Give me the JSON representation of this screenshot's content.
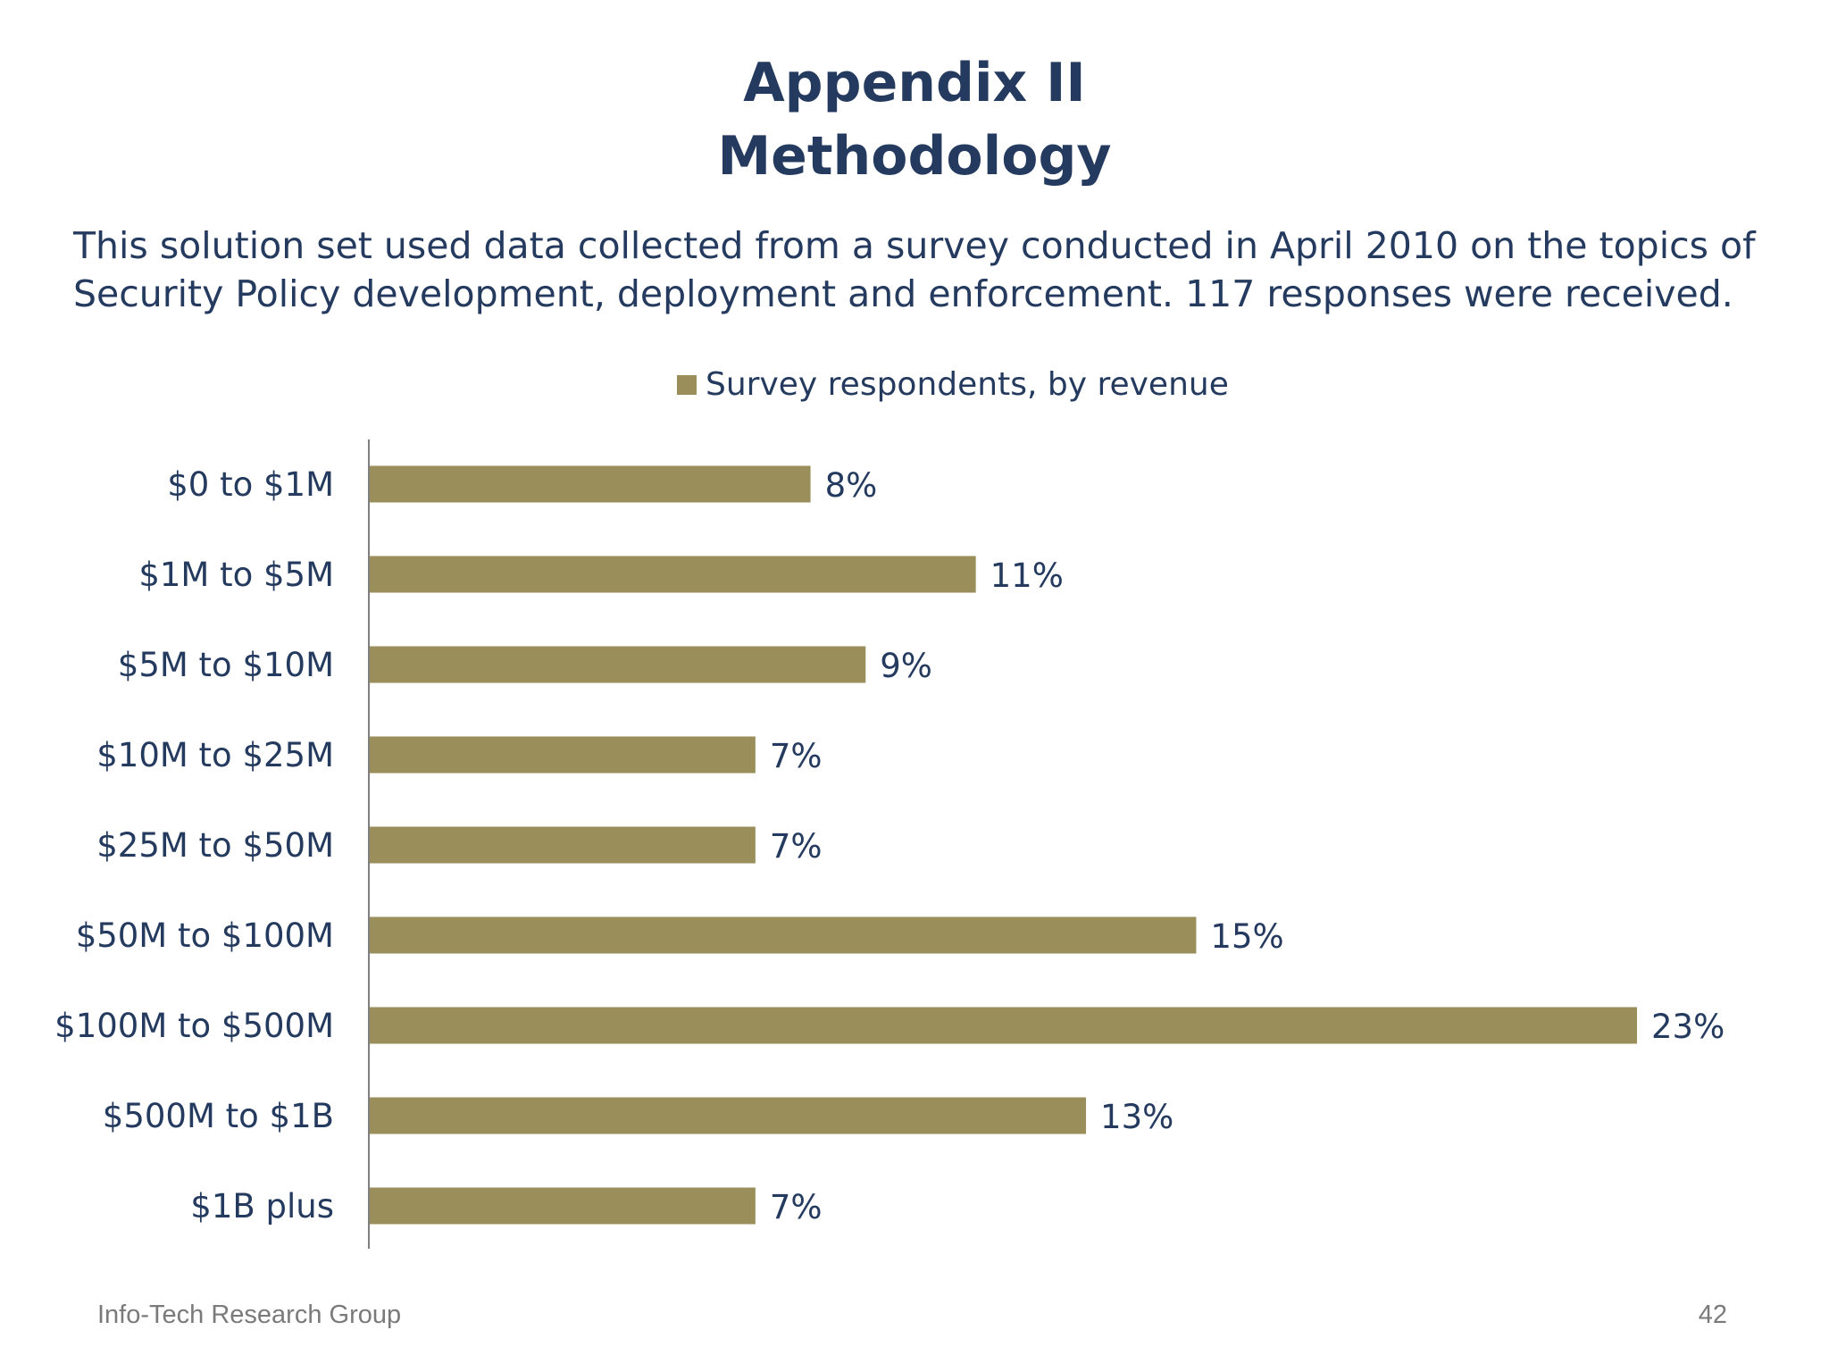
{
  "slide": {
    "title_line1": "Appendix II",
    "title_line2": "Methodology",
    "intro_line1": "This solution set used data collected from a survey conducted in April 2010 on the topics of",
    "intro_line2": "Security Policy development, deployment and enforcement. 117 responses were received."
  },
  "footer": {
    "organization": "Info-Tech Research Group",
    "page_number": "42"
  },
  "colors": {
    "bar": "#9a8f5a",
    "text": "#243a5e",
    "axis": "#7f7f7f"
  },
  "chart_data": {
    "type": "bar",
    "orientation": "horizontal",
    "categories": [
      "$0 to $1M",
      "$1M to $5M",
      "$5M to $10M",
      "$10M to $25M",
      "$25M to $50M",
      "$50M to $100M",
      "$100M to $500M",
      "$500M to $1B",
      "$1B plus"
    ],
    "series": [
      {
        "name": "Survey respondents, by revenue",
        "values": [
          8,
          11,
          9,
          7,
          7,
          15,
          23,
          13,
          7
        ],
        "labels": [
          "8%",
          "11%",
          "9%",
          "7%",
          "7%",
          "15%",
          "23%",
          "13%",
          "7%"
        ]
      }
    ],
    "legend_position": "top",
    "grid": false
  }
}
